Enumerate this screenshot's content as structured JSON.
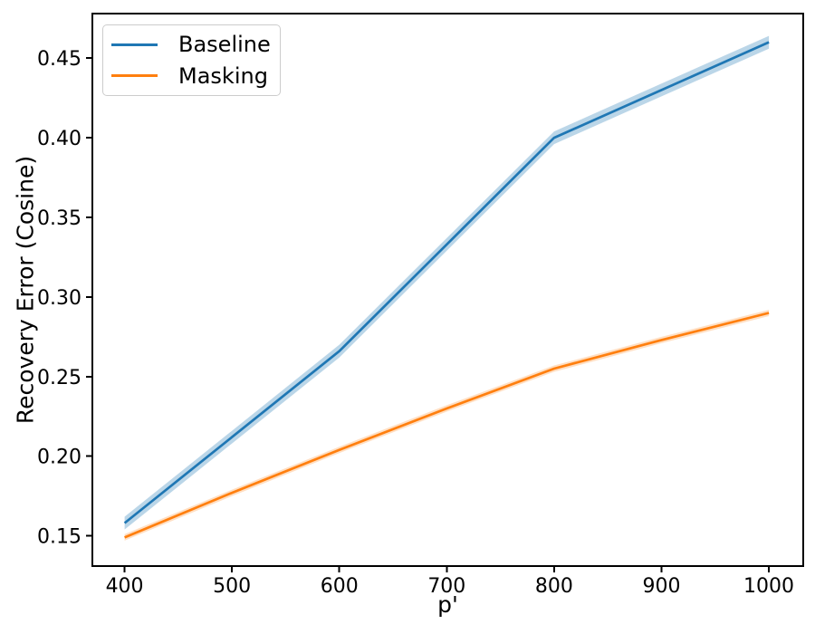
{
  "chart_data": {
    "type": "line",
    "title": "",
    "xlabel": "p'",
    "ylabel": "Recovery Error (Cosine)",
    "x": [
      400,
      500,
      600,
      700,
      800,
      900,
      1000
    ],
    "series": [
      {
        "name": "Baseline",
        "color": "#1f77b4",
        "values": [
          0.158,
          0.212,
          0.266,
          0.333,
          0.4,
          0.43,
          0.46
        ],
        "band": 0.004,
        "band_alpha": 0.3
      },
      {
        "name": "Masking",
        "color": "#ff7f0e",
        "values": [
          0.149,
          0.177,
          0.204,
          0.23,
          0.255,
          0.273,
          0.29
        ],
        "band": 0.002,
        "band_alpha": 0.25
      }
    ],
    "xticks": [
      400,
      500,
      600,
      700,
      800,
      900,
      1000
    ],
    "yticks": [
      0.15,
      0.2,
      0.25,
      0.3,
      0.35,
      0.4,
      0.45
    ],
    "xlim": [
      370,
      1032
    ],
    "ylim": [
      0.131,
      0.478
    ],
    "grid": false,
    "legend_position": "upper left",
    "axis_color": "#000000",
    "tick_label_color": "#000000"
  }
}
